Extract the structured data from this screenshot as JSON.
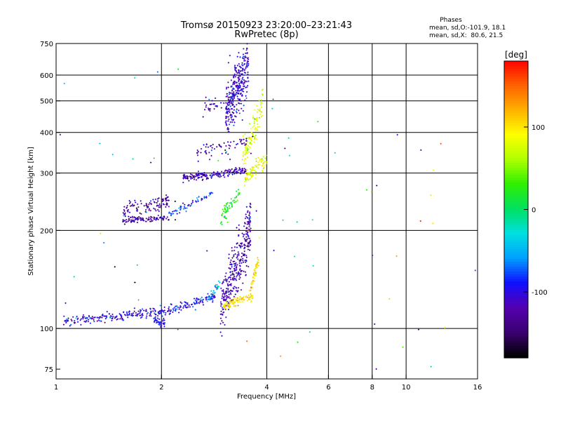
{
  "chart_data": {
    "type": "scatter",
    "title": "Tromsø 20150923 23:20:00–23:21:43",
    "subtitle": "RwPretec (8p)",
    "xlabel": "Frequency [MHz]",
    "ylabel": "Stationary phase Virtual Height [km]",
    "x_scale": "log",
    "y_scale": "log",
    "xlim": [
      1,
      16
    ],
    "ylim": [
      70,
      750
    ],
    "x_ticks": [
      1,
      2,
      4,
      6,
      8,
      10,
      16
    ],
    "y_ticks": [
      75,
      100,
      200,
      300,
      400,
      500,
      600,
      750
    ],
    "grid": true,
    "stats_title": "Phases",
    "stats_line1": "mean, sd,O:-101.9, 18.1",
    "stats_line2": "mean, sd,X:  80.6, 21.5",
    "colorbar_label": "[deg]",
    "colorbar_range": [
      -180,
      180
    ],
    "colorbar_ticks": [
      100,
      0,
      -100
    ],
    "colormap": [
      "#000000",
      "#3b0070",
      "#5500b0",
      "#1010ff",
      "#00a0ff",
      "#00e0e0",
      "#00e060",
      "#30f000",
      "#b0ff00",
      "#ffff00",
      "#ffb000",
      "#ff6000",
      "#ff0000"
    ],
    "traces": [
      {
        "x_start": 1.05,
        "x_end": 2.0,
        "h_start": 105,
        "h_end": 113,
        "phase": -105,
        "density": 190,
        "spread": 0.035
      },
      {
        "x_start": 1.9,
        "x_end": 2.05,
        "h_start": 106,
        "h_end": 104,
        "phase": -100,
        "density": 40,
        "spread": 0.025
      },
      {
        "x_start": 2.0,
        "x_end": 2.85,
        "h_start": 112,
        "h_end": 125,
        "phase": -95,
        "density": 120,
        "spread": 0.03
      },
      {
        "x_start": 2.7,
        "x_end": 2.95,
        "h_start": 122,
        "h_end": 140,
        "phase": -50,
        "density": 30,
        "spread": 0.03
      },
      {
        "x_start": 2.95,
        "x_end": 3.6,
        "h_start": 115,
        "h_end": 200,
        "phase": -120,
        "density": 330,
        "spread": 0.2
      },
      {
        "x_start": 3.0,
        "x_end": 3.65,
        "h_start": 117,
        "h_end": 126,
        "phase": 100,
        "density": 90,
        "spread": 0.03
      },
      {
        "x_start": 3.55,
        "x_end": 3.8,
        "h_start": 125,
        "h_end": 165,
        "phase": 100,
        "density": 50,
        "spread": 0.04
      },
      {
        "x_start": 1.55,
        "x_end": 2.1,
        "h_start": 215,
        "h_end": 218,
        "phase": -130,
        "density": 90,
        "spread": 0.02
      },
      {
        "x_start": 1.55,
        "x_end": 2.1,
        "h_start": 228,
        "h_end": 245,
        "phase": -125,
        "density": 110,
        "spread": 0.06
      },
      {
        "x_start": 2.1,
        "x_end": 2.8,
        "h_start": 225,
        "h_end": 260,
        "phase": -90,
        "density": 60,
        "spread": 0.025
      },
      {
        "x_start": 2.95,
        "x_end": 3.35,
        "h_start": 215,
        "h_end": 265,
        "phase": 20,
        "density": 60,
        "spread": 0.06
      },
      {
        "x_start": 2.3,
        "x_end": 3.5,
        "h_start": 290,
        "h_end": 305,
        "phase": -120,
        "density": 180,
        "spread": 0.025
      },
      {
        "x_start": 3.45,
        "x_end": 4.0,
        "h_start": 290,
        "h_end": 330,
        "phase": 85,
        "density": 80,
        "spread": 0.05
      },
      {
        "x_start": 3.4,
        "x_end": 3.9,
        "h_start": 330,
        "h_end": 500,
        "phase": 80,
        "density": 110,
        "spread": 0.12
      },
      {
        "x_start": 2.5,
        "x_end": 3.5,
        "h_start": 345,
        "h_end": 375,
        "phase": -125,
        "density": 60,
        "spread": 0.05
      },
      {
        "x_start": 2.6,
        "x_end": 3.1,
        "h_start": 470,
        "h_end": 510,
        "phase": -120,
        "density": 30,
        "spread": 0.06
      },
      {
        "x_start": 3.05,
        "x_end": 3.55,
        "h_start": 450,
        "h_end": 650,
        "phase": -110,
        "density": 320,
        "spread": 0.2
      },
      {
        "x_start": 1.0,
        "x_end": 16.0,
        "h_start": 75,
        "h_end": 650,
        "phase": -20,
        "density": 75,
        "spread": 1.0
      }
    ]
  }
}
